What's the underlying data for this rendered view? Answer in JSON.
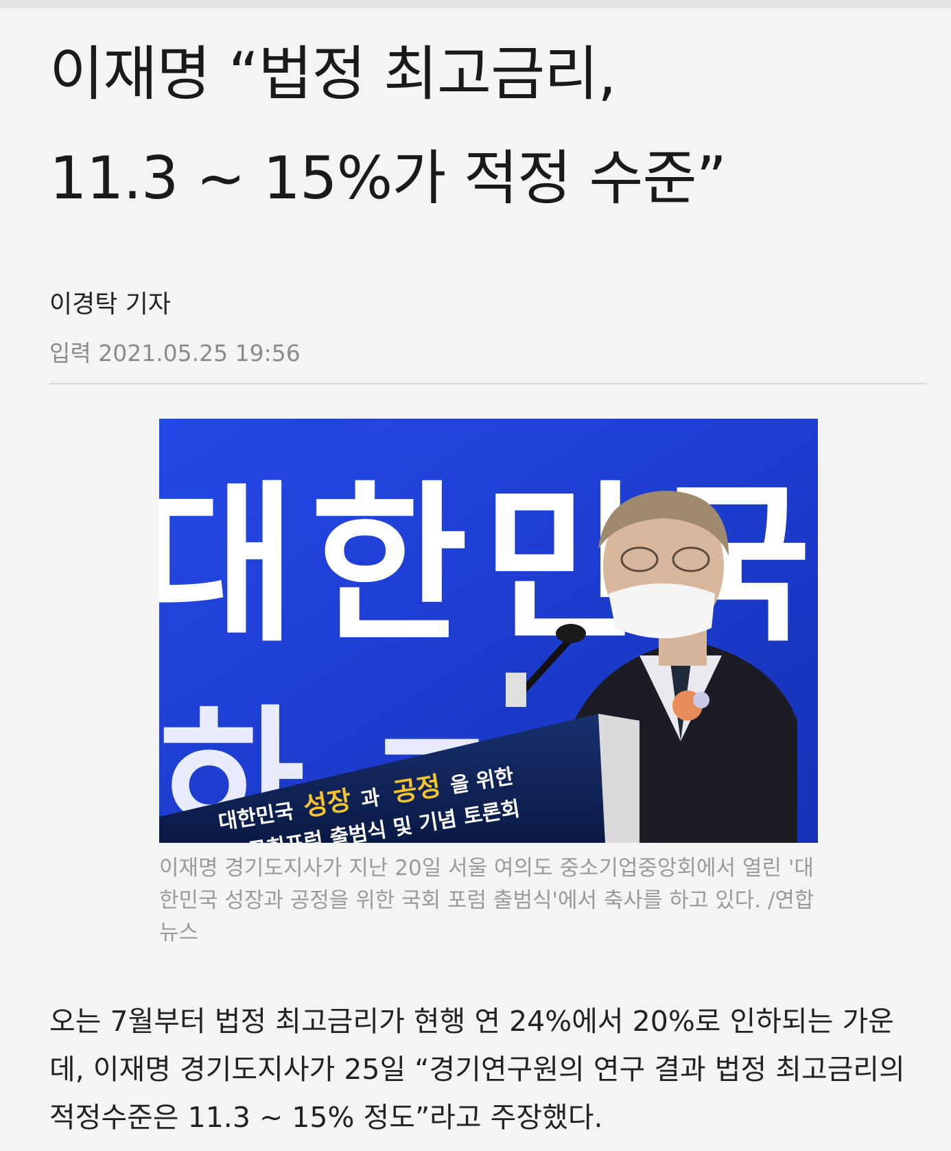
{
  "article": {
    "headline_line1": "이재명 “법정 최고금리,",
    "headline_line2": "11.3 ~ 15%가 적정 수준”",
    "byline": "이경탁 기자",
    "dateline": "입력 2021.05.25 19:56",
    "photo": {
      "backdrop_text": "대한민국",
      "podium_line1_a": "대한민국 ",
      "podium_line1_b": "성장",
      "podium_line1_c": "과 ",
      "podium_line1_d": "공정",
      "podium_line1_e": "을 위한",
      "podium_line2": "국회포럼 출범식 및 기념 토론회"
    },
    "caption": "이재명 경기도지사가 지난 20일 서울 여의도 중소기업중앙회에서 열린 '대한민국 성장과 공정을 위한 국회 포럼 출범식'에서 축사를 하고 있다. /연합뉴스",
    "body": "오는 7월부터 법정 최고금리가 현행 연 24%에서 20%로 인하되는 가운데, 이재명 경기도지사가 25일 “경기연구원의 연구 결과 법정 최고금리의 적정수준은 11.3 ~ 15% 정도”라고 주장했다."
  },
  "colors": {
    "backdrop_blue": "#1f3fd8",
    "podium_navy": "#0e2256",
    "podium_highlight": "#f2c230"
  }
}
